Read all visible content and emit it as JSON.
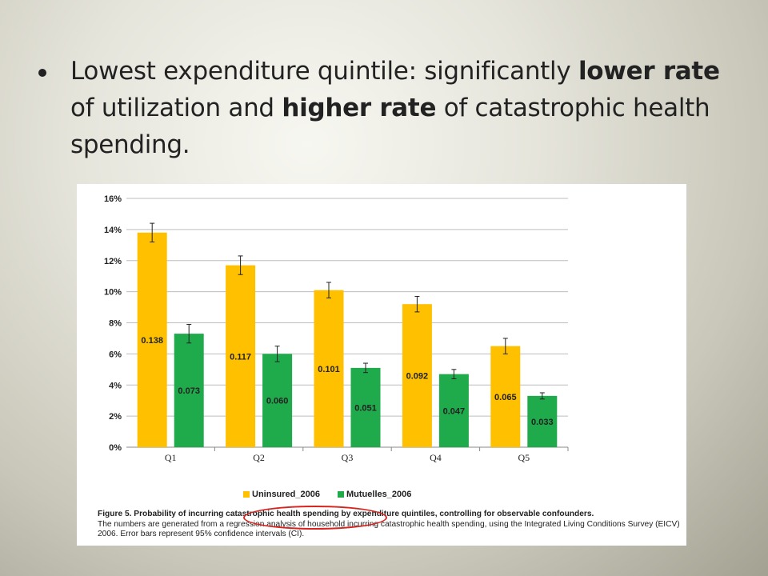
{
  "slide": {
    "bullet": {
      "part1": "Lowest expenditure quintile: significantly ",
      "bold1": "lower rate",
      "part2": " of utilization and ",
      "bold2": "higher rate",
      "part3": " of catastrophic health spending."
    }
  },
  "figure": {
    "caption_title": "Figure 5. Probability of incurring catastrophic health spending by expenditure quintiles, controlling for observable confounders.",
    "caption_body": "The numbers are generated from a regression analysis of household incurring catastrophic health spending, using the Integrated Living Conditions Survey (EICV) 2006. Error bars represent 95% confidence intervals (CI).",
    "highlight_color": "#d8241f"
  },
  "chart_data": {
    "type": "bar",
    "categories": [
      "Q1",
      "Q2",
      "Q3",
      "Q4",
      "Q5"
    ],
    "series": [
      {
        "name": "Uninsured_2006",
        "color": "#ffc000",
        "values": [
          0.138,
          0.117,
          0.101,
          0.092,
          0.065
        ],
        "labels": [
          "0.138",
          "0.117",
          "0.101",
          "0.092",
          "0.065"
        ],
        "ci": [
          [
            0.132,
            0.144
          ],
          [
            0.111,
            0.123
          ],
          [
            0.096,
            0.106
          ],
          [
            0.087,
            0.097
          ],
          [
            0.06,
            0.07
          ]
        ]
      },
      {
        "name": "Mutuelles_2006",
        "color": "#1faa4b",
        "values": [
          0.073,
          0.06,
          0.051,
          0.047,
          0.033
        ],
        "labels": [
          "0.073",
          "0.060",
          "0.051",
          "0.047",
          "0.033"
        ],
        "ci": [
          [
            0.067,
            0.079
          ],
          [
            0.055,
            0.065
          ],
          [
            0.048,
            0.054
          ],
          [
            0.044,
            0.05
          ],
          [
            0.031,
            0.035
          ]
        ]
      }
    ],
    "yticks": [
      "0%",
      "2%",
      "4%",
      "6%",
      "8%",
      "10%",
      "12%",
      "14%",
      "16%"
    ],
    "ylim": [
      0,
      0.16
    ],
    "xlabel": "",
    "ylabel": "",
    "grid": true,
    "legend_position": "bottom"
  }
}
